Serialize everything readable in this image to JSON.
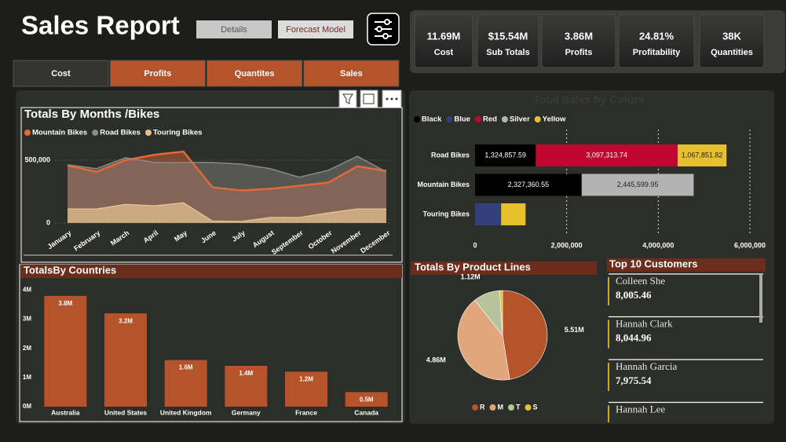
{
  "header": {
    "title": "Sales Report",
    "buttons": [
      "Details",
      "Forecast Model"
    ]
  },
  "kpis": [
    {
      "value": "11.69M",
      "label": "Cost"
    },
    {
      "value": "$15.54M",
      "label": "Sub Totals"
    },
    {
      "value": "3.86M",
      "label": "Profits"
    },
    {
      "value": "24.81%",
      "label": "Profitability"
    },
    {
      "value": "38K",
      "label": "Quantities"
    }
  ],
  "tabs": [
    "Cost",
    "Profits",
    "Quantites",
    "Sales"
  ],
  "chart_data": [
    {
      "type": "area",
      "title": "Totals By Months /Bikes",
      "categories": [
        "January",
        "February",
        "March",
        "April",
        "May",
        "June",
        "July",
        "August",
        "September",
        "October",
        "November",
        "December"
      ],
      "series": [
        {
          "name": "Mountain Bikes",
          "color": "#e0693a",
          "values": [
            457000,
            407000,
            500000,
            543000,
            568000,
            284000,
            259000,
            272000,
            296000,
            321000,
            451000,
            414000
          ]
        },
        {
          "name": "Road Bikes",
          "color": "#8a8a86",
          "values": [
            463000,
            432000,
            519000,
            481000,
            481000,
            481000,
            469000,
            432000,
            364000,
            420000,
            531000,
            407000
          ]
        },
        {
          "name": "Touring Bikes",
          "color": "#e3c08f",
          "values": [
            111000,
            111000,
            148000,
            136000,
            160000,
            15000,
            12000,
            43000,
            43000,
            80000,
            111000,
            111000
          ]
        }
      ],
      "ylim": [
        0,
        650000
      ],
      "yticks": [
        0,
        {
          "value": 500000,
          "label": "500,000"
        }
      ],
      "grid": true,
      "legend": "top-left"
    },
    {
      "type": "bar",
      "title": "TotalsBy Countries",
      "categories": [
        "Australia",
        "United States",
        "United Kingdom",
        "Germany",
        "France",
        "Canada"
      ],
      "values": [
        3.8,
        3.2,
        1.6,
        1.4,
        1.2,
        0.5
      ],
      "value_labels": [
        "3.8M",
        "3.2M",
        "1.6M",
        "1.4M",
        "1.2M",
        "0.5M"
      ],
      "color": "#b5532a",
      "ylim": [
        0,
        4.2
      ],
      "yticks": [
        {
          "value": 0,
          "label": "0M"
        },
        {
          "value": 1,
          "label": "1M"
        },
        {
          "value": 2,
          "label": "2M"
        },
        {
          "value": 3,
          "label": "3M"
        },
        {
          "value": 4,
          "label": "4M"
        }
      ]
    },
    {
      "type": "stacked-barh",
      "title": "Total Sales by Colors",
      "categories": [
        "Road Bikes",
        "Mountain Bikes",
        "Touring Bikes"
      ],
      "series": [
        {
          "name": "Black",
          "color": "#000000",
          "values": [
            1324857.59,
            2327360.55,
            null
          ],
          "value_labels": [
            "1,324,857.59",
            "2,327,360.55",
            null
          ]
        },
        {
          "name": "Blue",
          "color": "#34407e",
          "values": [
            null,
            null,
            569000
          ],
          "value_labels": [
            null,
            null,
            null
          ]
        },
        {
          "name": "Red",
          "color": "#c0062e",
          "values": [
            3097313.74,
            null,
            null
          ],
          "value_labels": [
            "3,097,313.74",
            null,
            null
          ]
        },
        {
          "name": "Silver",
          "color": "#b3b3b3",
          "values": [
            null,
            2445599.95,
            null
          ],
          "value_labels": [
            null,
            "2,445,599.95",
            null
          ]
        },
        {
          "name": "Yellow",
          "color": "#e6c02e",
          "values": [
            1067851.82,
            null,
            534000
          ],
          "value_labels": [
            "1,067,851.82",
            null,
            null
          ]
        }
      ],
      "xlim": [
        0,
        6000000
      ],
      "xticks": [
        0,
        {
          "value": 2000000,
          "label": "2,000,000"
        },
        {
          "value": 4000000,
          "label": "4,000,000"
        },
        {
          "value": 6000000,
          "label": "6,000,000"
        }
      ],
      "grid": true,
      "legend": "top-left"
    },
    {
      "type": "pie",
      "title": "Totals By Product Lines",
      "labels": [
        "R",
        "M",
        "T",
        "S"
      ],
      "values": [
        5.51,
        4.86,
        1.12,
        0.12
      ],
      "value_labels": [
        "5.51M",
        "4.86M",
        "1.12M",
        null
      ],
      "colors": [
        "#b5532a",
        "#e2a67c",
        "#b7c49b",
        "#e6c02e"
      ],
      "legend": "bottom"
    }
  ],
  "customers": {
    "title": "Top 10 Customers",
    "rows": [
      {
        "name": "Colleen She",
        "amount": "8,005.46"
      },
      {
        "name": "Hannah Clark",
        "amount": "8,044.96"
      },
      {
        "name": "Hannah Garcia",
        "amount": "7,975.54"
      },
      {
        "name": "Hannah Lee"
      }
    ]
  }
}
